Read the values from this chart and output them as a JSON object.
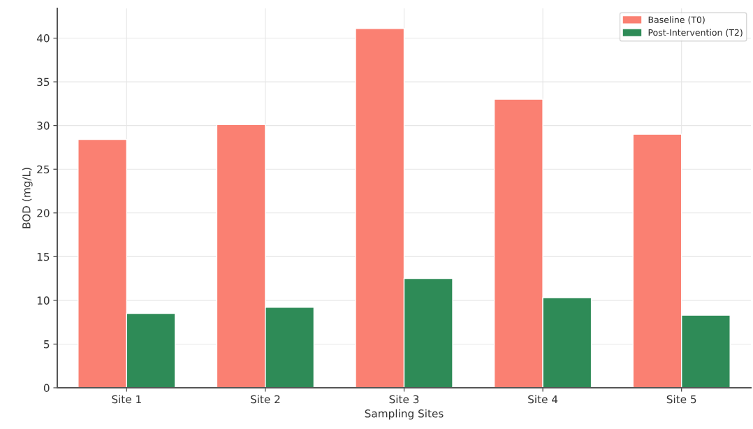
{
  "chart_data": {
    "type": "bar",
    "xlabel": "Sampling Sites",
    "ylabel": "BOD (mg/L)",
    "categories": [
      "Site 1",
      "Site 2",
      "Site 3",
      "Site 4",
      "Site 5"
    ],
    "series": [
      {
        "name": "Baseline (T0)",
        "color": "#fa8072",
        "values": [
          28.4,
          30.1,
          41.1,
          33.0,
          29.0
        ]
      },
      {
        "name": "Post-Intervention (T2)",
        "color": "#2e8b57",
        "values": [
          8.5,
          9.2,
          12.5,
          10.3,
          8.3
        ]
      }
    ],
    "ylim": [
      0,
      43.4
    ],
    "yticks": [
      0,
      5,
      10,
      15,
      20,
      25,
      30,
      35,
      40
    ],
    "grid": true,
    "legend": "top right"
  }
}
